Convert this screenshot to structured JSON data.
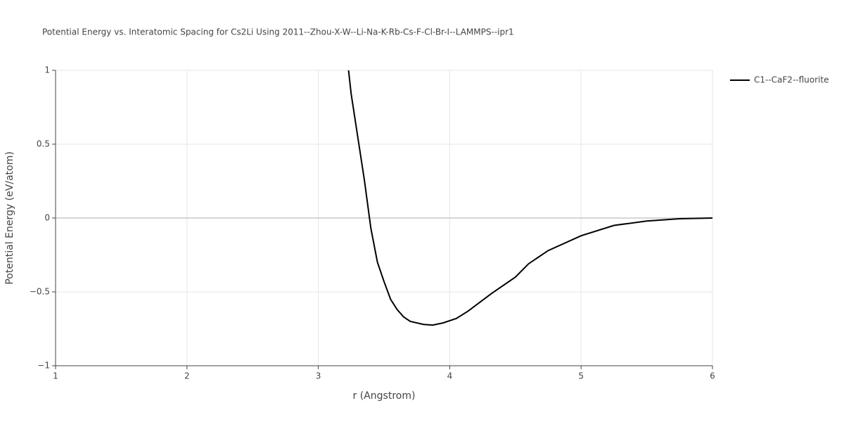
{
  "chart_data": {
    "type": "line",
    "title": "Potential Energy vs. Interatomic Spacing for Cs2Li Using 2011--Zhou-X-W--Li-Na-K-Rb-Cs-F-Cl-Br-I--LAMMPS--ipr1",
    "x_label": "r (Angstrom)",
    "y_label": "Potential Energy (eV/atom)",
    "x": [
      3.23,
      3.25,
      3.3,
      3.35,
      3.4,
      3.45,
      3.5,
      3.55,
      3.6,
      3.65,
      3.7,
      3.8,
      3.87,
      3.95,
      4.05,
      4.14,
      4.32,
      4.5,
      4.6,
      4.75,
      5.0,
      5.25,
      5.5,
      5.75,
      6.0
    ],
    "series": [
      {
        "name": "C1--CaF2--fluorite",
        "color": "#000000",
        "values": [
          1.0,
          0.84,
          0.55,
          0.26,
          -0.07,
          -0.3,
          -0.43,
          -0.55,
          -0.62,
          -0.67,
          -0.7,
          -0.72,
          -0.725,
          -0.71,
          -0.68,
          -0.63,
          -0.51,
          -0.4,
          -0.31,
          -0.22,
          -0.12,
          -0.05,
          -0.02,
          -0.005,
          0.0
        ]
      }
    ],
    "xlim": [
      1,
      6
    ],
    "ylim": [
      -1,
      1
    ],
    "xticks": [
      1,
      2,
      3,
      4,
      5,
      6
    ],
    "yticks": [
      {
        "value": -1,
        "label": "−1"
      },
      {
        "value": -0.5,
        "label": "−0.5"
      },
      0,
      0.5,
      1
    ],
    "grid": true,
    "legend": "top-right"
  }
}
